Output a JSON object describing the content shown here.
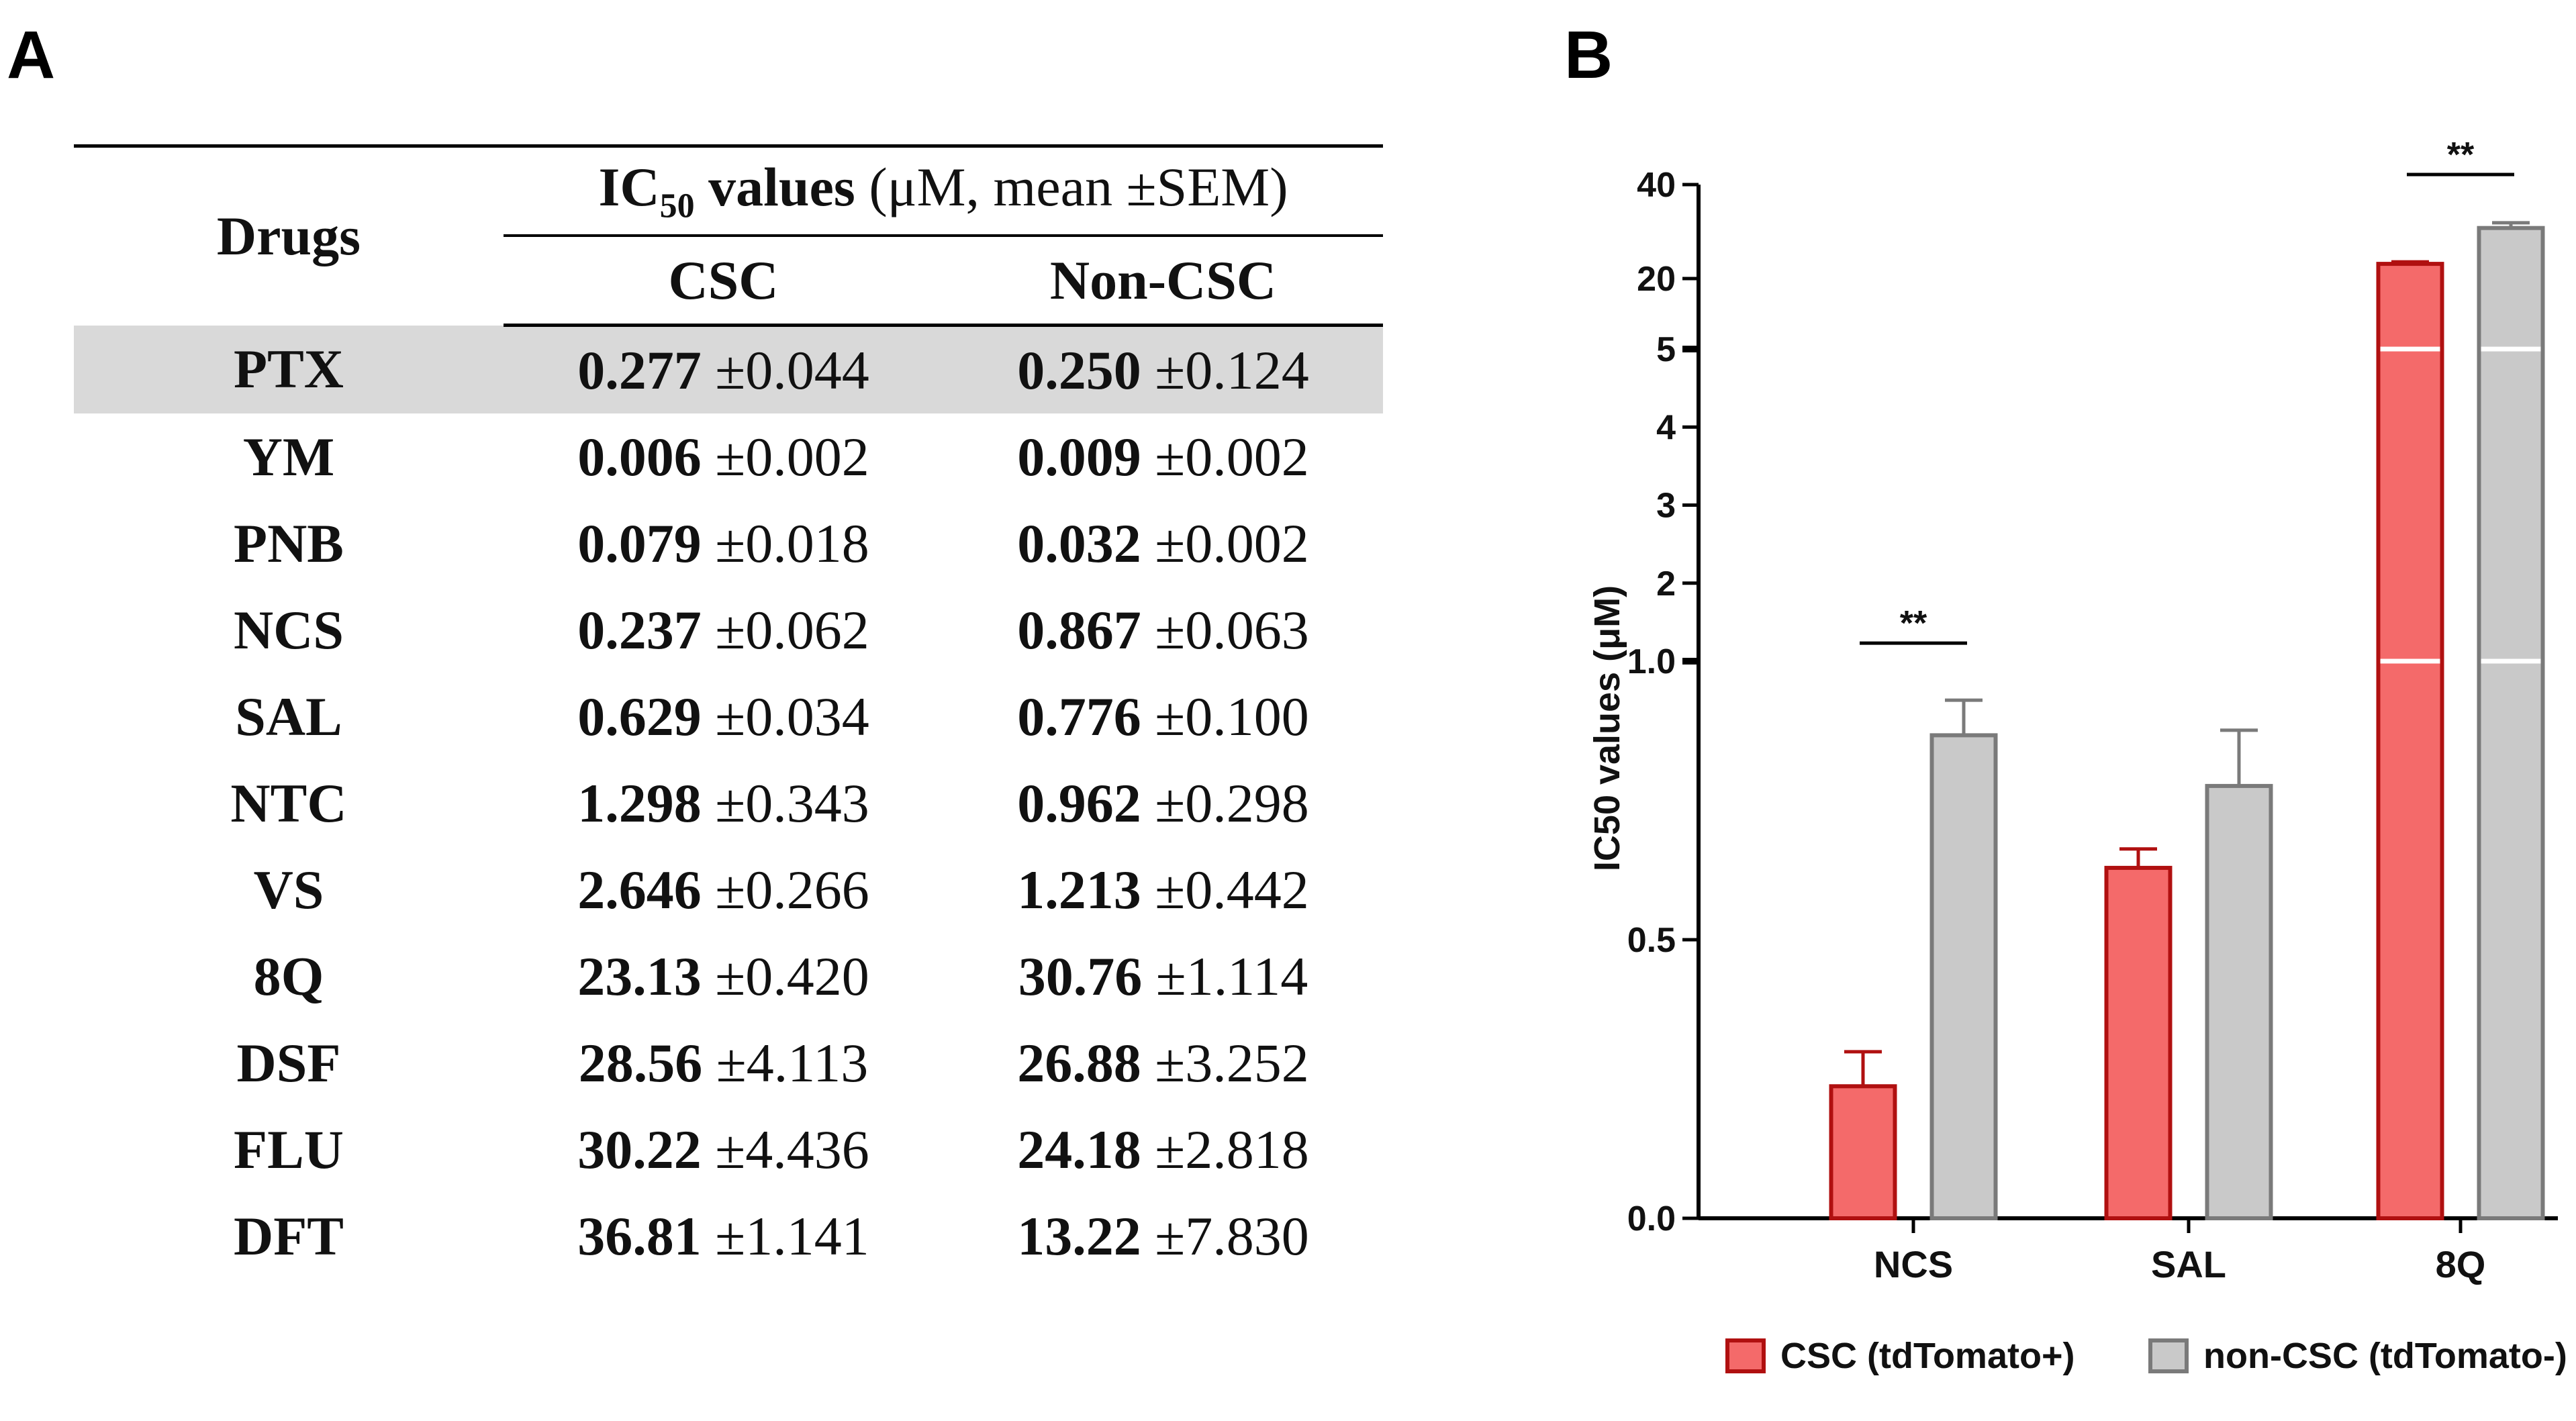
{
  "panel_labels": {
    "a": "A",
    "b": "B"
  },
  "table": {
    "header": {
      "drugs": "Drugs",
      "group_prefix": "IC",
      "group_sub": "50",
      "group_bold": " values",
      "group_rest": " (μM, mean ±SEM)",
      "csc": "CSC",
      "non_csc": "Non-CSC"
    },
    "highlight_row": "PTX",
    "rows": [
      {
        "drug": "PTX",
        "csc_mean": "0.277",
        "csc_sem": "±0.044",
        "non_mean": "0.250",
        "non_sem": "±0.124"
      },
      {
        "drug": "YM",
        "csc_mean": "0.006",
        "csc_sem": "±0.002",
        "non_mean": "0.009",
        "non_sem": "±0.002"
      },
      {
        "drug": "PNB",
        "csc_mean": "0.079",
        "csc_sem": "±0.018",
        "non_mean": "0.032",
        "non_sem": "±0.002"
      },
      {
        "drug": "NCS",
        "csc_mean": "0.237",
        "csc_sem": "±0.062",
        "non_mean": "0.867",
        "non_sem": "±0.063"
      },
      {
        "drug": "SAL",
        "csc_mean": "0.629",
        "csc_sem": "±0.034",
        "non_mean": "0.776",
        "non_sem": "±0.100"
      },
      {
        "drug": "NTC",
        "csc_mean": "1.298",
        "csc_sem": "±0.343",
        "non_mean": "0.962",
        "non_sem": "±0.298"
      },
      {
        "drug": "VS",
        "csc_mean": "2.646",
        "csc_sem": "±0.266",
        "non_mean": "1.213",
        "non_sem": "±0.442"
      },
      {
        "drug": "8Q",
        "csc_mean": "23.13",
        "csc_sem": "±0.420",
        "non_mean": "30.76",
        "non_sem": "±1.114"
      },
      {
        "drug": "DSF",
        "csc_mean": "28.56",
        "csc_sem": "±4.113",
        "non_mean": "26.88",
        "non_sem": "±3.252"
      },
      {
        "drug": "FLU",
        "csc_mean": "30.22",
        "csc_sem": "±4.436",
        "non_mean": "24.18",
        "non_sem": "±2.818"
      },
      {
        "drug": "DFT",
        "csc_mean": "36.81",
        "csc_sem": "±1.141",
        "non_mean": "13.22",
        "non_sem": "±7.830"
      }
    ]
  },
  "chart_data": {
    "type": "bar",
    "ylabel": "IC50 values (μM)",
    "scale": "segmented (broken axis)",
    "segments": [
      {
        "range": [
          0,
          1.0
        ],
        "ticks": [
          "0.0",
          "0.5",
          "1.0"
        ],
        "tick_values": [
          0,
          0.5,
          1.0
        ]
      },
      {
        "range": [
          1.0,
          5
        ],
        "ticks": [
          "2",
          "3",
          "4",
          "5"
        ],
        "tick_values": [
          2,
          3,
          4,
          5
        ]
      },
      {
        "range": [
          5,
          40
        ],
        "ticks": [
          "20",
          "40"
        ],
        "tick_values": [
          20,
          40
        ]
      }
    ],
    "categories": [
      "NCS",
      "SAL",
      "8Q"
    ],
    "series": [
      {
        "name": "CSC (tdTomato+)",
        "values": [
          0.237,
          0.629,
          23.13
        ],
        "errors": [
          0.062,
          0.034,
          0.42
        ],
        "fill": "#f46a6a",
        "stroke": "#b01010"
      },
      {
        "name": "non-CSC (tdTomato-)",
        "values": [
          0.867,
          0.776,
          30.76
        ],
        "errors": [
          0.063,
          0.1,
          1.114
        ],
        "fill": "#c9c9c9",
        "stroke": "#7a7a7a"
      }
    ],
    "significance": [
      {
        "category": "NCS",
        "label": "**"
      },
      {
        "category": "8Q",
        "label": "**"
      }
    ],
    "grid": false,
    "legend_position": "bottom"
  }
}
